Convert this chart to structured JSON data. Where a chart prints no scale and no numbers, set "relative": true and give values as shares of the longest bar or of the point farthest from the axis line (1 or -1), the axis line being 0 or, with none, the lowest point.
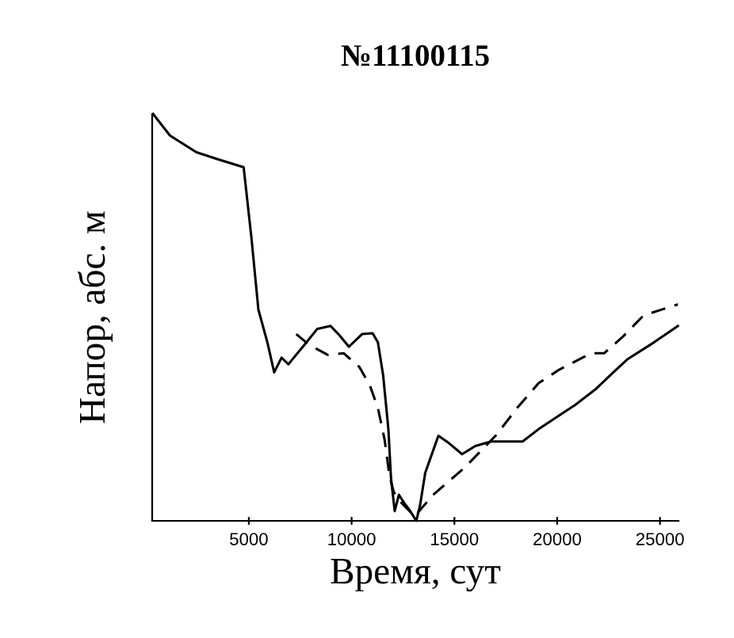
{
  "chart_data": {
    "type": "line",
    "title": "№11100115",
    "xlabel": "Время, сут",
    "ylabel": "Напор, абс. м",
    "relative": true,
    "xlim": [
      300,
      25900
    ],
    "xticks": [
      5000,
      10000,
      15000,
      20000,
      25000
    ],
    "grid": false,
    "legend": false,
    "series": [
      {
        "color": "#000000",
        "line_style": "solid",
        "x": [
          346,
          1165,
          2445,
          3469,
          4749,
          5133,
          5466,
          5901,
          6234,
          6592,
          6925,
          7693,
          8333,
          8973,
          9357,
          9869,
          10509,
          11021,
          11277,
          11533,
          11789,
          11917,
          12096,
          12301,
          12557,
          12813,
          13146,
          13325,
          13581,
          14221,
          14733,
          15373,
          16013,
          16781,
          18317,
          19085,
          19853,
          20877,
          21901,
          22669,
          23437,
          24717,
          25869
        ],
        "values": [
          1.0,
          0.947,
          0.906,
          0.889,
          0.869,
          0.693,
          0.519,
          0.439,
          0.365,
          0.401,
          0.385,
          0.432,
          0.472,
          0.479,
          0.459,
          0.428,
          0.459,
          0.461,
          0.439,
          0.358,
          0.225,
          0.104,
          0.024,
          0.064,
          0.044,
          0.027,
          0.0,
          0.037,
          0.118,
          0.209,
          0.191,
          0.164,
          0.184,
          0.195,
          0.195,
          0.225,
          0.251,
          0.285,
          0.325,
          0.362,
          0.398,
          0.439,
          0.479
        ]
      },
      {
        "color": "#000000",
        "line_style": "dashed",
        "x": [
          7309,
          7949,
          8845,
          9613,
          10381,
          10893,
          11277,
          11610,
          11840,
          12045,
          12429,
          13069,
          13965,
          15501,
          17037,
          18061,
          19085,
          20109,
          21645,
          22285,
          23181,
          24205,
          25869
        ],
        "values": [
          0.459,
          0.432,
          0.408,
          0.412,
          0.378,
          0.332,
          0.278,
          0.198,
          0.111,
          0.071,
          0.044,
          0.011,
          0.064,
          0.131,
          0.211,
          0.278,
          0.338,
          0.372,
          0.412,
          0.412,
          0.452,
          0.505,
          0.532
        ]
      }
    ]
  }
}
